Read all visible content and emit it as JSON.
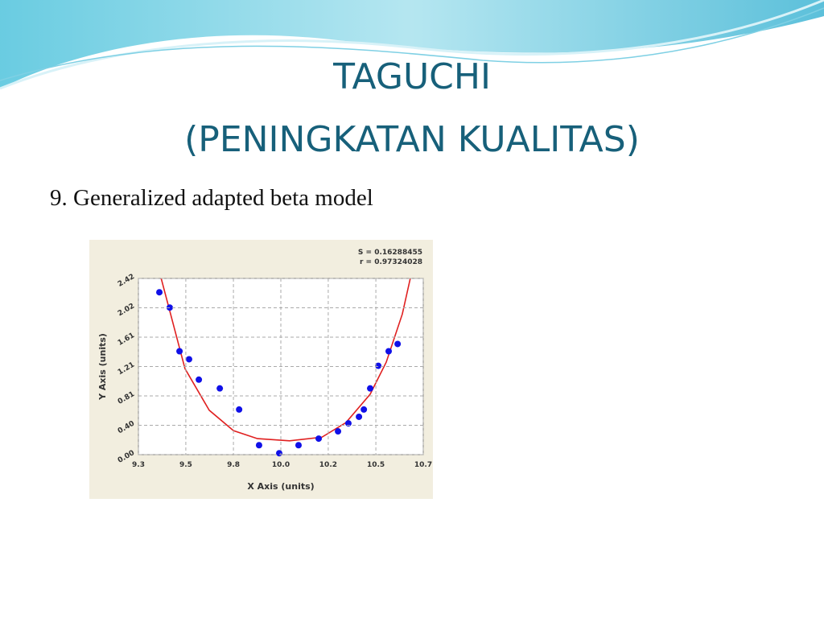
{
  "title": [
    "TAGUCHI",
    "(PENINGKATAN KUALITAS)"
  ],
  "heading": "9. Generalized adapted beta model",
  "chart_data": {
    "type": "scatter",
    "annotations": [
      "S = 0.16288455",
      "r = 0.97324028"
    ],
    "x_label": "X Axis (units)",
    "y_label": "Y Axis (units)",
    "xlim": [
      9.3,
      10.7
    ],
    "ylim": [
      0,
      2.42
    ],
    "xticks": [
      {
        "value": 9.3,
        "label": "9.3"
      },
      {
        "value": 9.533,
        "label": "9.5"
      },
      {
        "value": 9.767,
        "label": "9.8"
      },
      {
        "value": 10.0,
        "label": "10.0"
      },
      {
        "value": 10.233,
        "label": "10.2"
      },
      {
        "value": 10.467,
        "label": "10.5"
      },
      {
        "value": 10.7,
        "label": "10.7"
      }
    ],
    "yticks": [
      {
        "value": 0,
        "label": "0.00"
      },
      {
        "value": 0.4033,
        "label": "0.40"
      },
      {
        "value": 0.8067,
        "label": "0.81"
      },
      {
        "value": 1.21,
        "label": "1.21"
      },
      {
        "value": 1.6133,
        "label": "1.61"
      },
      {
        "value": 2.0167,
        "label": "2.02"
      },
      {
        "value": 2.42,
        "label": "2.42"
      }
    ],
    "grid": true,
    "series": [
      {
        "type": "scatter",
        "color": "#1010e8",
        "x": [
          9.403,
          9.454,
          9.502,
          9.549,
          9.597,
          9.7,
          9.795,
          9.893,
          9.992,
          10.087,
          10.186,
          10.281,
          10.332,
          10.384,
          10.408,
          10.439,
          10.479,
          10.53,
          10.574
        ],
        "values": [
          2.23,
          2.02,
          1.42,
          1.31,
          1.03,
          0.91,
          0.62,
          0.13,
          0.02,
          0.13,
          0.22,
          0.32,
          0.43,
          0.52,
          0.62,
          0.91,
          1.22,
          1.42,
          1.52
        ]
      },
      {
        "type": "line",
        "color": "#e02020",
        "x": [
          9.411,
          9.529,
          9.648,
          9.767,
          9.885,
          10.043,
          10.202,
          10.32,
          10.439,
          10.518,
          10.597,
          10.637
        ],
        "values": [
          2.43,
          1.18,
          0.61,
          0.33,
          0.22,
          0.19,
          0.24,
          0.44,
          0.83,
          1.27,
          1.93,
          2.43
        ]
      }
    ]
  }
}
